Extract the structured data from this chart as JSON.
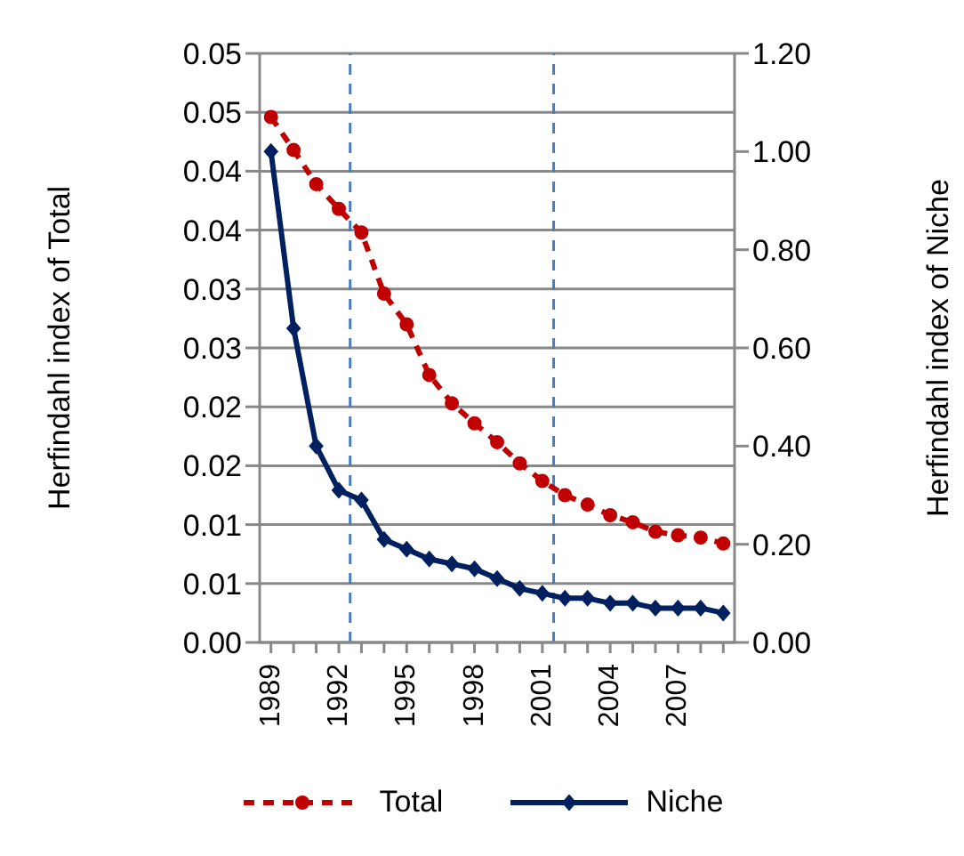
{
  "chart_data": {
    "type": "line",
    "ylabel": "Herfindahl index of Total",
    "y2label": "Herfindahl index of Niche",
    "x": [
      1989,
      1990,
      1991,
      1992,
      1993,
      1994,
      1995,
      1996,
      1997,
      1998,
      1999,
      2000,
      2001,
      2002,
      2003,
      2004,
      2005,
      2006,
      2007,
      2008,
      2009
    ],
    "xlim": [
      1988.5,
      2009.5
    ],
    "xticks": [
      1989,
      {
        "value": 1990,
        "label": null
      },
      {
        "value": 1991,
        "label": null
      },
      1992,
      {
        "value": 1993,
        "label": null
      },
      {
        "value": 1994,
        "label": null
      },
      1995,
      {
        "value": 1996,
        "label": null
      },
      {
        "value": 1997,
        "label": null
      },
      1998,
      {
        "value": 1999,
        "label": null
      },
      {
        "value": 2000,
        "label": null
      },
      2001,
      {
        "value": 2002,
        "label": null
      },
      {
        "value": 2003,
        "label": null
      },
      2004,
      {
        "value": 2005,
        "label": null
      },
      {
        "value": 2006,
        "label": null
      },
      2007,
      {
        "value": 2008,
        "label": null
      },
      {
        "value": 2009,
        "label": null
      }
    ],
    "series": [
      {
        "name": "Total",
        "color": "#c00000",
        "marker": "circle",
        "line_style": "dashed",
        "values": [
          0.0446,
          0.0418,
          0.0389,
          0.0368,
          0.0348,
          0.0296,
          0.027,
          0.0227,
          0.0203,
          0.0186,
          0.017,
          0.0152,
          0.0137,
          0.0125,
          0.0117,
          0.0108,
          0.0102,
          0.0094,
          0.0091,
          0.0089,
          0.0084
        ]
      },
      {
        "name": "Niche",
        "color": "#002060",
        "marker": "diamond",
        "line_style": "solid",
        "axis": "y2",
        "values": [
          1.0,
          0.64,
          0.4,
          0.31,
          0.29,
          0.21,
          0.19,
          0.17,
          0.16,
          0.15,
          0.13,
          0.11,
          0.1,
          0.09,
          0.09,
          0.08,
          0.08,
          0.07,
          0.07,
          0.07,
          0.06
        ]
      }
    ],
    "ylim": [
      0,
      0.05
    ],
    "yticks": [
      {
        "value": 0,
        "label": "0.00"
      },
      {
        "value": 0.005,
        "label": "0.01"
      },
      {
        "value": 0.01,
        "label": "0.01"
      },
      {
        "value": 0.015,
        "label": "0.02"
      },
      {
        "value": 0.02,
        "label": "0.02"
      },
      {
        "value": 0.025,
        "label": "0.03"
      },
      {
        "value": 0.03,
        "label": "0.03"
      },
      {
        "value": 0.035,
        "label": "0.04"
      },
      {
        "value": 0.04,
        "label": "0.04"
      },
      {
        "value": 0.045,
        "label": "0.05"
      },
      {
        "value": 0.05,
        "label": "0.05"
      }
    ],
    "y2lim": [
      0,
      1.2
    ],
    "y2ticks": [
      {
        "value": 0,
        "label": "0.00"
      },
      {
        "value": 0.2,
        "label": "0.20"
      },
      {
        "value": 0.4,
        "label": "0.40"
      },
      {
        "value": 0.6,
        "label": "0.60"
      },
      {
        "value": 0.8,
        "label": "0.80"
      },
      {
        "value": 1,
        "label": "1.00"
      },
      {
        "value": 1.2,
        "label": "1.20"
      }
    ],
    "ref_lines": [
      {
        "axis": "x",
        "value": 1992.5,
        "color": "#4a7ebb",
        "line_style": "dashed"
      },
      {
        "axis": "x",
        "value": 2001.5,
        "color": "#4a7ebb",
        "line_style": "dashed"
      }
    ],
    "grid": "y",
    "legend": "bottom"
  }
}
